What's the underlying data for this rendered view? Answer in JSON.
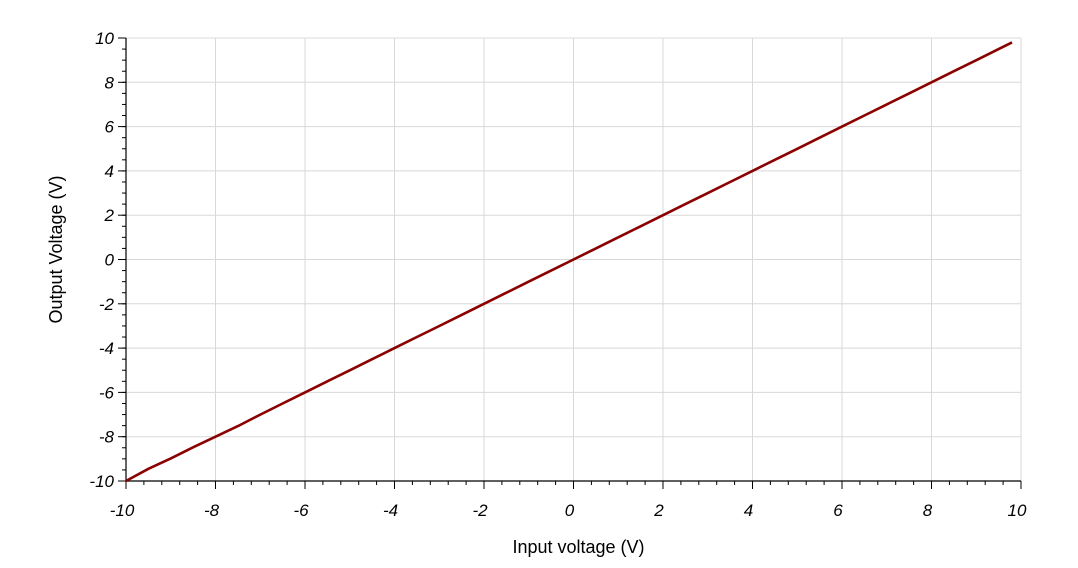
{
  "chart_data": {
    "type": "line",
    "title": "",
    "xlabel": "Input voltage (V)",
    "ylabel": "Output Voltage (V)",
    "xlim": [
      -10,
      10
    ],
    "ylim": [
      -10,
      10
    ],
    "x_ticks": [
      "-10",
      "-8",
      "-6",
      "-4",
      "-2",
      "0",
      "2",
      "4",
      "6",
      "8",
      "10"
    ],
    "y_ticks": [
      "-10",
      "-8",
      "-6",
      "-4",
      "-2",
      "0",
      "2",
      "4",
      "6",
      "8",
      "10"
    ],
    "grid": true,
    "series": [
      {
        "color": "#8b0000",
        "x": [
          -10,
          -9.5,
          -9,
          -8.5,
          -8,
          -7.5,
          -7,
          -6.5,
          -6,
          -5.5,
          -5,
          -4.5,
          -4,
          -3.5,
          -3,
          -2.5,
          -2,
          -1.5,
          -1,
          -0.5,
          0,
          0.5,
          1,
          1.5,
          2,
          2.5,
          3,
          3.5,
          4,
          4.5,
          5,
          5.5,
          6,
          6.5,
          7,
          7.5,
          8,
          8.5,
          9,
          9.5,
          9.8
        ],
        "y": [
          -10,
          -9.45,
          -8.98,
          -8.48,
          -8.0,
          -7.52,
          -7.0,
          -6.5,
          -6.0,
          -5.5,
          -5.0,
          -4.5,
          -4.0,
          -3.5,
          -3.0,
          -2.5,
          -2.0,
          -1.5,
          -1.0,
          -0.5,
          0,
          0.5,
          1.0,
          1.5,
          2.0,
          2.5,
          3.0,
          3.5,
          4.0,
          4.5,
          5.0,
          5.5,
          6.0,
          6.5,
          7.0,
          7.5,
          8.0,
          8.5,
          9.0,
          9.5,
          9.8
        ]
      }
    ]
  }
}
